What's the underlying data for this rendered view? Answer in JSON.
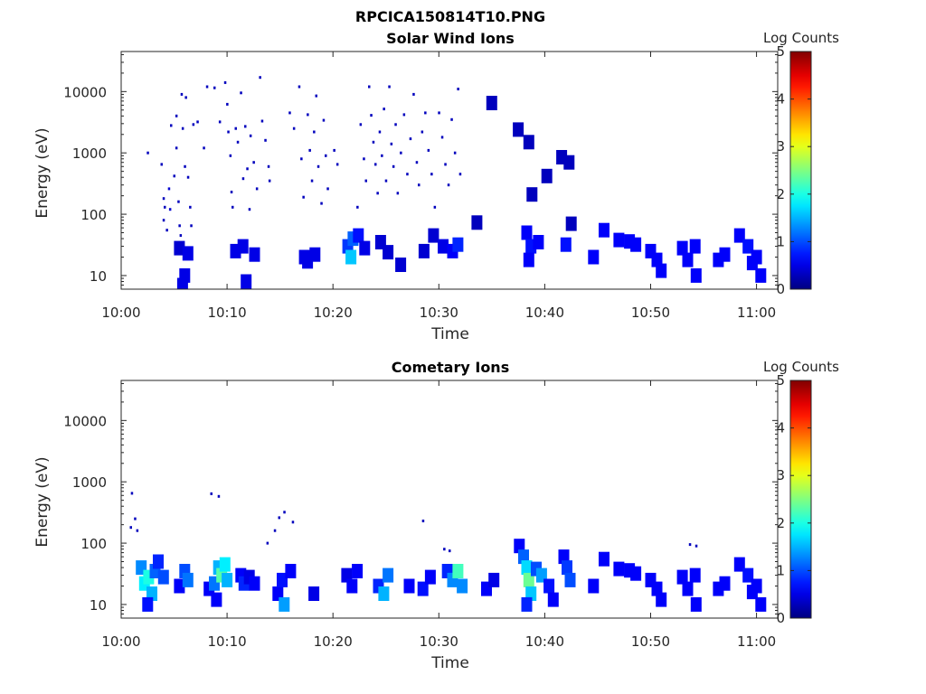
{
  "figure": {
    "title": "RPCICA150814T10.PNG"
  },
  "chart_data": [
    {
      "type": "heatmap",
      "title": "Solar Wind Ions",
      "xlabel": "Time",
      "ylabel": "Energy (eV)",
      "x_range": [
        "10:00",
        "11:02"
      ],
      "y_range": [
        6,
        45000
      ],
      "y_scale": "log",
      "x_ticks": [
        "10:00",
        "10:10",
        "10:20",
        "10:30",
        "10:40",
        "10:50",
        "11:00"
      ],
      "y_ticks": [
        "10",
        "100",
        "1000",
        "10000"
      ],
      "grid": false,
      "colorbar": {
        "label": "Log Counts",
        "min": 0,
        "max": 5,
        "ticks": [
          "0",
          "1",
          "2",
          "3",
          "4",
          "5"
        ],
        "colormap": "jet",
        "placement": "right"
      },
      "points": [
        [
          2.5,
          1000,
          0.3
        ],
        [
          3.8,
          650,
          0.3
        ],
        [
          4.0,
          180,
          0.3
        ],
        [
          4.1,
          130,
          0.3
        ],
        [
          4.0,
          80,
          0.3
        ],
        [
          4.3,
          55,
          0.3
        ],
        [
          4.5,
          260,
          0.4
        ],
        [
          4.6,
          120,
          0.4
        ],
        [
          4.7,
          2800,
          0.3
        ],
        [
          5.0,
          420,
          0.3
        ],
        [
          5.2,
          4000,
          0.3
        ],
        [
          5.2,
          1200,
          0.3
        ],
        [
          5.4,
          160,
          0.3
        ],
        [
          5.5,
          65,
          0.3
        ],
        [
          5.6,
          45,
          0.3
        ],
        [
          5.7,
          9000,
          0.3
        ],
        [
          5.8,
          2500,
          0.3
        ],
        [
          6.0,
          600,
          0.3
        ],
        [
          6.1,
          8000,
          0.3
        ],
        [
          6.3,
          400,
          0.3
        ],
        [
          6.5,
          130,
          0.3
        ],
        [
          6.6,
          65,
          0.3
        ],
        [
          6.8,
          2900,
          0.3
        ],
        [
          7.2,
          3200,
          0.3
        ],
        [
          7.8,
          1200,
          0.3
        ],
        [
          8.1,
          12000,
          0.3
        ],
        [
          8.8,
          11500,
          0.3
        ],
        [
          9.3,
          3200,
          0.3
        ],
        [
          9.8,
          14000,
          0.3
        ],
        [
          10.0,
          6200,
          0.3
        ],
        [
          10.1,
          2200,
          0.3
        ],
        [
          10.3,
          900,
          0.3
        ],
        [
          10.4,
          230,
          0.3
        ],
        [
          10.5,
          130,
          0.3
        ],
        [
          10.8,
          2500,
          0.3
        ],
        [
          11.0,
          1500,
          0.3
        ],
        [
          11.3,
          9500,
          0.3
        ],
        [
          11.5,
          380,
          0.3
        ],
        [
          11.7,
          2700,
          0.3
        ],
        [
          11.9,
          550,
          0.3
        ],
        [
          12.1,
          120,
          0.3
        ],
        [
          12.2,
          1900,
          0.3
        ],
        [
          12.5,
          700,
          0.3
        ],
        [
          12.8,
          260,
          0.3
        ],
        [
          13.1,
          17000,
          0.3
        ],
        [
          13.3,
          3300,
          0.3
        ],
        [
          13.6,
          1600,
          0.3
        ],
        [
          13.9,
          600,
          0.3
        ],
        [
          14.0,
          350,
          0.3
        ],
        [
          15.9,
          4500,
          0.3
        ],
        [
          16.3,
          2500,
          0.3
        ],
        [
          16.8,
          12000,
          0.3
        ],
        [
          17.0,
          800,
          0.3
        ],
        [
          17.2,
          190,
          0.3
        ],
        [
          17.6,
          4200,
          0.3
        ],
        [
          17.8,
          1100,
          0.3
        ],
        [
          18.0,
          350,
          0.3
        ],
        [
          18.2,
          2200,
          0.3
        ],
        [
          18.4,
          8500,
          0.3
        ],
        [
          18.6,
          600,
          0.3
        ],
        [
          18.9,
          150,
          0.3
        ],
        [
          19.1,
          3400,
          0.3
        ],
        [
          19.3,
          900,
          0.3
        ],
        [
          19.5,
          260,
          0.3
        ],
        [
          20.1,
          1100,
          0.3
        ],
        [
          20.4,
          650,
          0.3
        ],
        [
          22.3,
          130,
          0.3
        ],
        [
          22.6,
          2900,
          0.3
        ],
        [
          22.9,
          800,
          0.3
        ],
        [
          23.1,
          350,
          0.3
        ],
        [
          23.4,
          12000,
          0.3
        ],
        [
          23.6,
          4100,
          0.3
        ],
        [
          23.8,
          1500,
          0.3
        ],
        [
          24.0,
          650,
          0.3
        ],
        [
          24.2,
          220,
          0.3
        ],
        [
          24.4,
          2200,
          0.3
        ],
        [
          24.6,
          900,
          0.3
        ],
        [
          24.8,
          5200,
          0.3
        ],
        [
          25.0,
          350,
          0.3
        ],
        [
          25.3,
          12000,
          0.3
        ],
        [
          25.5,
          1400,
          0.3
        ],
        [
          25.7,
          600,
          0.3
        ],
        [
          25.9,
          2900,
          0.3
        ],
        [
          26.1,
          220,
          0.3
        ],
        [
          26.4,
          1000,
          0.3
        ],
        [
          26.7,
          4200,
          0.3
        ],
        [
          27.0,
          450,
          0.3
        ],
        [
          27.3,
          1700,
          0.3
        ],
        [
          27.6,
          9000,
          0.3
        ],
        [
          27.9,
          700,
          0.3
        ],
        [
          28.1,
          300,
          0.3
        ],
        [
          28.4,
          2200,
          0.3
        ],
        [
          28.7,
          4500,
          0.3
        ],
        [
          29.0,
          1100,
          0.3
        ],
        [
          29.3,
          450,
          0.3
        ],
        [
          29.6,
          130,
          0.3
        ],
        [
          30.0,
          4500,
          0.3
        ],
        [
          30.3,
          1800,
          0.3
        ],
        [
          30.6,
          650,
          0.3
        ],
        [
          30.9,
          300,
          0.3
        ],
        [
          31.2,
          3500,
          0.3
        ],
        [
          31.5,
          1000,
          0.3
        ],
        [
          31.8,
          11000,
          0.3
        ],
        [
          32.0,
          450,
          0.3
        ]
      ],
      "cells": [
        [
          35.0,
          6500,
          0.3
        ],
        [
          37.5,
          2400,
          0.3
        ],
        [
          38.5,
          1500,
          0.3
        ],
        [
          40.2,
          420,
          0.3
        ],
        [
          41.6,
          850,
          0.3
        ],
        [
          42.3,
          700,
          0.3
        ],
        [
          38.8,
          210,
          0.3
        ],
        [
          33.6,
          73,
          0.3
        ],
        [
          42.5,
          70,
          0.3
        ],
        [
          5.5,
          28,
          0.4
        ],
        [
          6.0,
          10,
          0.5
        ],
        [
          6.3,
          23,
          0.5
        ],
        [
          5.8,
          7,
          0.5
        ],
        [
          10.8,
          25,
          0.5
        ],
        [
          11.5,
          30,
          0.5
        ],
        [
          11.8,
          8,
          0.5
        ],
        [
          12.6,
          22,
          0.5
        ],
        [
          17.3,
          20,
          0.5
        ],
        [
          17.6,
          17,
          0.5
        ],
        [
          18.3,
          22,
          0.5
        ],
        [
          21.4,
          30,
          0.9
        ],
        [
          21.7,
          20,
          1.6
        ],
        [
          21.9,
          40,
          1.1
        ],
        [
          22.4,
          45,
          0.7
        ],
        [
          23.0,
          28,
          0.5
        ],
        [
          24.5,
          35,
          0.4
        ],
        [
          25.2,
          24,
          0.4
        ],
        [
          26.4,
          15,
          0.4
        ],
        [
          28.6,
          25,
          0.4
        ],
        [
          29.5,
          45,
          0.4
        ],
        [
          30.4,
          30,
          0.5
        ],
        [
          31.3,
          25,
          0.6
        ],
        [
          31.8,
          32,
          0.8
        ],
        [
          38.3,
          50,
          0.6
        ],
        [
          38.7,
          30,
          0.7
        ],
        [
          38.5,
          18,
          0.6
        ],
        [
          39.4,
          35,
          0.6
        ],
        [
          42.0,
          32,
          0.7
        ],
        [
          44.6,
          20,
          0.6
        ],
        [
          45.6,
          55,
          0.6
        ],
        [
          47.0,
          38,
          0.6
        ],
        [
          48.0,
          36,
          0.6
        ],
        [
          48.6,
          32,
          0.6
        ],
        [
          50.0,
          25,
          0.6
        ],
        [
          50.6,
          18,
          0.6
        ],
        [
          51.0,
          12,
          0.6
        ],
        [
          53.0,
          28,
          0.6
        ],
        [
          53.5,
          18,
          0.6
        ],
        [
          54.2,
          30,
          0.6
        ],
        [
          54.3,
          10,
          0.6
        ],
        [
          56.4,
          18,
          0.6
        ],
        [
          57.0,
          22,
          0.6
        ],
        [
          58.4,
          45,
          0.6
        ],
        [
          59.2,
          30,
          0.7
        ],
        [
          59.6,
          16,
          0.6
        ],
        [
          60.0,
          20,
          0.6
        ],
        [
          60.4,
          10,
          0.6
        ]
      ]
    },
    {
      "type": "heatmap",
      "title": "Cometary Ions",
      "xlabel": "Time",
      "ylabel": "Energy (eV)",
      "x_range": [
        "10:00",
        "11:02"
      ],
      "y_range": [
        6,
        45000
      ],
      "y_scale": "log",
      "x_ticks": [
        "10:00",
        "10:10",
        "10:20",
        "10:30",
        "10:40",
        "10:50",
        "11:00"
      ],
      "y_ticks": [
        "10",
        "100",
        "1000",
        "10000"
      ],
      "grid": false,
      "colorbar": {
        "label": "Log Counts",
        "min": 0,
        "max": 5,
        "ticks": [
          "0",
          "1",
          "2",
          "3",
          "4",
          "5"
        ],
        "colormap": "jet",
        "placement": "right"
      },
      "points": [
        [
          1.0,
          650,
          0.3
        ],
        [
          0.9,
          180,
          0.3
        ],
        [
          1.3,
          250,
          0.3
        ],
        [
          1.5,
          160,
          0.3
        ],
        [
          8.5,
          640,
          0.3
        ],
        [
          9.2,
          580,
          0.3
        ],
        [
          13.8,
          100,
          0.3
        ],
        [
          14.5,
          160,
          0.3
        ],
        [
          14.9,
          260,
          0.3
        ],
        [
          15.4,
          320,
          0.3
        ],
        [
          16.2,
          220,
          0.3
        ],
        [
          28.5,
          230,
          0.3
        ],
        [
          30.5,
          80,
          0.3
        ],
        [
          31.0,
          75,
          0.3
        ],
        [
          53.7,
          95,
          0.3
        ],
        [
          54.3,
          90,
          0.3
        ]
      ],
      "cells": [
        [
          1.9,
          40,
          1.3
        ],
        [
          2.2,
          22,
          1.8
        ],
        [
          2.6,
          28,
          2.0
        ],
        [
          2.9,
          15,
          1.5
        ],
        [
          3.2,
          35,
          1.1
        ],
        [
          2.5,
          10,
          0.7
        ],
        [
          3.5,
          50,
          0.8
        ],
        [
          4.0,
          28,
          1.0
        ],
        [
          5.5,
          20,
          0.6
        ],
        [
          6.0,
          35,
          1.0
        ],
        [
          6.3,
          25,
          1.2
        ],
        [
          8.3,
          18,
          0.6
        ],
        [
          8.8,
          22,
          1.2
        ],
        [
          9.2,
          40,
          1.5
        ],
        [
          9.5,
          30,
          2.3
        ],
        [
          9.8,
          45,
          1.8
        ],
        [
          10.0,
          25,
          1.5
        ],
        [
          9.0,
          12,
          0.6
        ],
        [
          11.3,
          30,
          0.6
        ],
        [
          11.6,
          22,
          0.8
        ],
        [
          12.1,
          28,
          0.5
        ],
        [
          12.6,
          22,
          0.6
        ],
        [
          14.8,
          15,
          0.6
        ],
        [
          15.2,
          25,
          0.7
        ],
        [
          15.4,
          10,
          1.4
        ],
        [
          16.0,
          35,
          0.6
        ],
        [
          18.2,
          15,
          0.5
        ],
        [
          21.3,
          30,
          0.5
        ],
        [
          21.8,
          20,
          0.6
        ],
        [
          22.3,
          35,
          0.6
        ],
        [
          24.3,
          20,
          0.8
        ],
        [
          24.8,
          15,
          1.5
        ],
        [
          25.2,
          30,
          1.2
        ],
        [
          27.2,
          20,
          0.6
        ],
        [
          28.5,
          18,
          0.7
        ],
        [
          29.2,
          28,
          0.6
        ],
        [
          30.8,
          35,
          0.8
        ],
        [
          31.3,
          25,
          1.3
        ],
        [
          31.8,
          35,
          2.2
        ],
        [
          32.2,
          20,
          1.3
        ],
        [
          34.5,
          18,
          0.6
        ],
        [
          35.2,
          25,
          0.5
        ],
        [
          37.6,
          90,
          0.6
        ],
        [
          38.0,
          60,
          1.1
        ],
        [
          38.3,
          40,
          1.7
        ],
        [
          38.5,
          25,
          2.4
        ],
        [
          38.7,
          15,
          1.6
        ],
        [
          38.3,
          10,
          0.8
        ],
        [
          39.2,
          38,
          1.0
        ],
        [
          39.7,
          30,
          1.4
        ],
        [
          40.4,
          20,
          0.7
        ],
        [
          40.8,
          12,
          0.6
        ],
        [
          41.8,
          60,
          0.6
        ],
        [
          42.1,
          40,
          0.9
        ],
        [
          42.4,
          25,
          1.0
        ],
        [
          44.6,
          20,
          0.6
        ],
        [
          45.6,
          55,
          0.6
        ],
        [
          47.0,
          38,
          0.6
        ],
        [
          48.0,
          36,
          0.6
        ],
        [
          48.6,
          32,
          0.6
        ],
        [
          50.0,
          25,
          0.6
        ],
        [
          50.6,
          18,
          0.6
        ],
        [
          51.0,
          12,
          0.6
        ],
        [
          53.0,
          28,
          0.6
        ],
        [
          53.5,
          18,
          0.6
        ],
        [
          54.2,
          30,
          0.6
        ],
        [
          54.3,
          10,
          0.6
        ],
        [
          56.4,
          18,
          0.6
        ],
        [
          57.0,
          22,
          0.6
        ],
        [
          58.4,
          45,
          0.6
        ],
        [
          59.2,
          30,
          0.7
        ],
        [
          59.6,
          16,
          0.6
        ],
        [
          60.0,
          20,
          0.6
        ],
        [
          60.4,
          10,
          0.6
        ]
      ]
    }
  ]
}
